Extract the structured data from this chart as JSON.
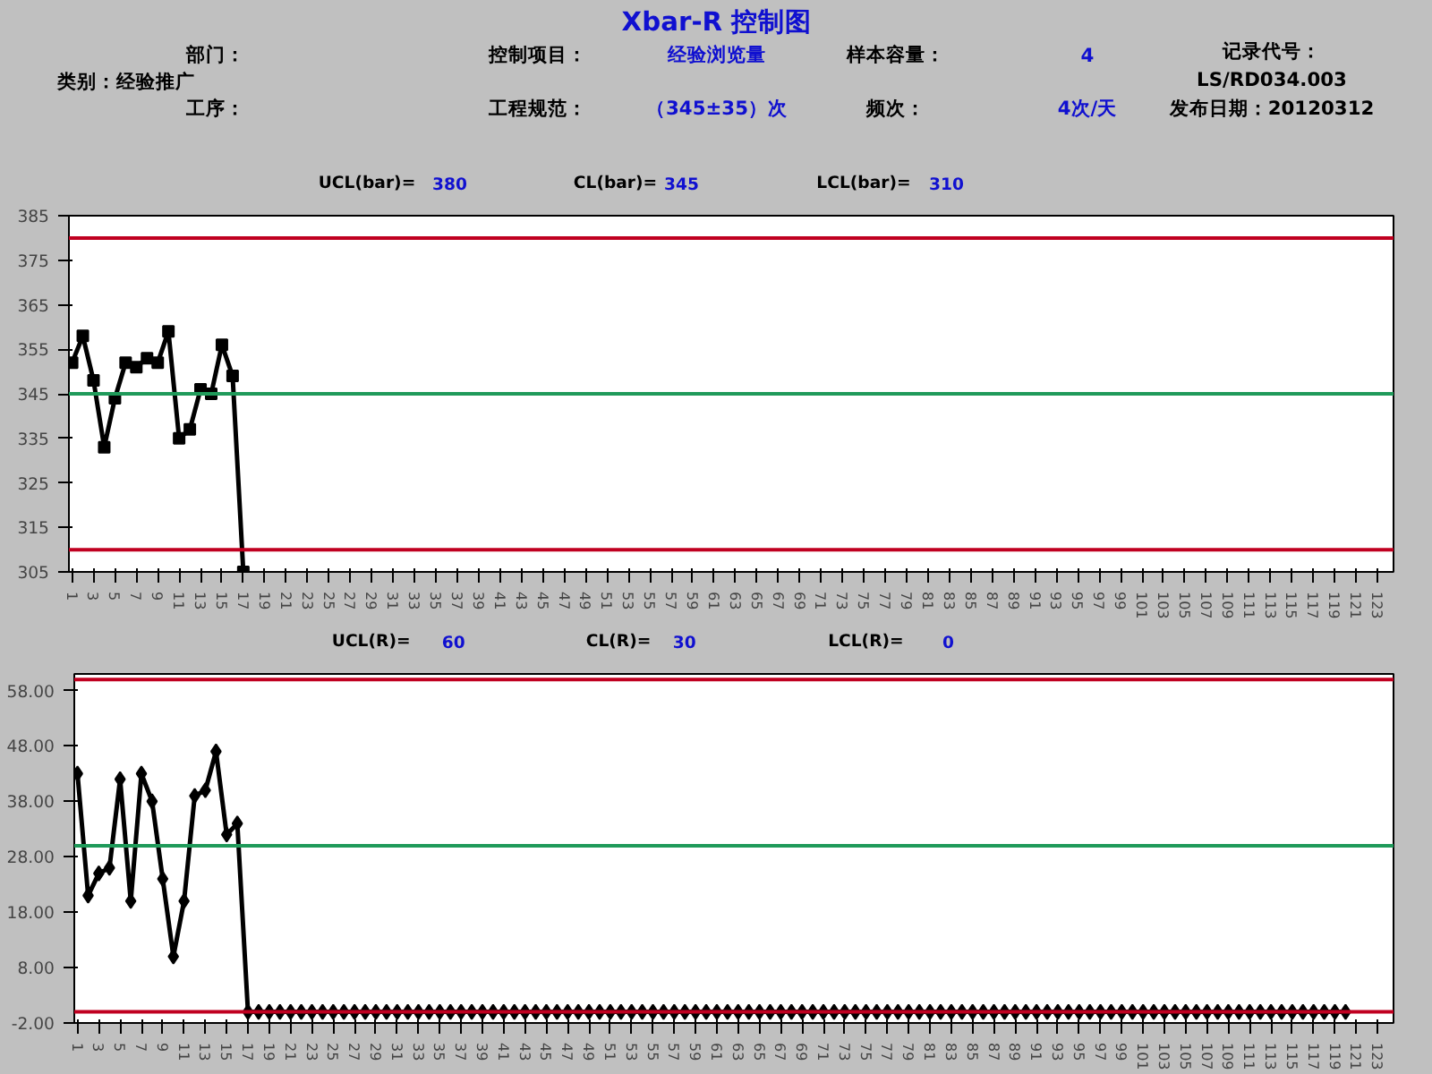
{
  "chart_data": [
    {
      "type": "other",
      "title": "Xbar-R 控制图",
      "annotations": [
        "类别：经验推广",
        "部门：",
        "控制项目：",
        "经验浏览量",
        "样本容量：",
        "4",
        "工序：",
        "工程规范：",
        "（345±35）次",
        "频次：",
        "4次/天",
        "记录代号：",
        "LS/RD034.003",
        "发布日期：20120312"
      ]
    },
    {
      "type": "line",
      "color": "#000000",
      "marker": "square",
      "line_style": "solid",
      "grid": false,
      "categories": [
        "1",
        null,
        "3",
        null,
        "5",
        null,
        "7",
        null,
        "9",
        null,
        "11",
        null,
        "13",
        null,
        "15",
        null,
        "17",
        null,
        "19",
        null,
        "21",
        null,
        "23",
        null,
        "25",
        null,
        "27",
        null,
        "29",
        null,
        "31",
        null,
        "33",
        null,
        "35",
        null,
        "37",
        null,
        "39",
        null,
        "41",
        null,
        "43",
        null,
        "45",
        null,
        "47",
        null,
        "49",
        null,
        "51",
        null,
        "53",
        null,
        "55",
        null,
        "57",
        null,
        "59",
        null,
        "61",
        null,
        "63",
        null,
        "65",
        null,
        "67",
        null,
        "69",
        null,
        "71",
        null,
        "73",
        null,
        "75",
        null,
        "77",
        null,
        "79",
        null,
        "81",
        null,
        "83",
        null,
        "85",
        null,
        "87",
        null,
        "89",
        null,
        "91",
        null,
        "93",
        null,
        "95",
        null,
        "97",
        null,
        "99",
        null,
        "101",
        null,
        "103",
        null,
        "105",
        null,
        "107",
        null,
        "109",
        null,
        "111",
        null,
        "113",
        null,
        "115",
        null,
        "117",
        null,
        "119",
        null,
        "121",
        null,
        "123",
        null
      ],
      "values": [
        352,
        358,
        348,
        333,
        344,
        352,
        351,
        353,
        352,
        359,
        335,
        337,
        346,
        345,
        356,
        349,
        305,
        null,
        null,
        null,
        null,
        null,
        null,
        null,
        null,
        null,
        null,
        null,
        null,
        null,
        null,
        null,
        null,
        null,
        null,
        null,
        null,
        null,
        null,
        null,
        null,
        null,
        null,
        null,
        null,
        null,
        null,
        null,
        null,
        null,
        null,
        null,
        null,
        null,
        null,
        null,
        null,
        null,
        null,
        null,
        null,
        null,
        null,
        null,
        null,
        null,
        null,
        null,
        null,
        null,
        null,
        null,
        null,
        null,
        null,
        null,
        null,
        null,
        null,
        null,
        null,
        null,
        null,
        null,
        null,
        null,
        null,
        null,
        null,
        null,
        null,
        null,
        null,
        null,
        null,
        null,
        null,
        null,
        null,
        null,
        null,
        null,
        null,
        null,
        null,
        null,
        null,
        null,
        null,
        null,
        null,
        null,
        null,
        null,
        null,
        null,
        null,
        null,
        null,
        null,
        null,
        null,
        null,
        null
      ],
      "ylim": [
        305,
        385
      ],
      "yticks": [
        305,
        315,
        325,
        335,
        345,
        355,
        365,
        375,
        385
      ],
      "ref_lines": [
        {
          "axis": "y",
          "value": 380,
          "color": "#c00020"
        },
        {
          "axis": "y",
          "value": 345,
          "color": "#1f9a5a"
        },
        {
          "axis": "y",
          "value": 310,
          "color": "#c00020"
        }
      ],
      "annotations": [
        "UCL(bar)=",
        "380",
        "CL(bar)=",
        "345",
        "LCL(bar)=",
        "310"
      ]
    },
    {
      "type": "line",
      "color": "#000000",
      "marker": "diamond",
      "line_style": "solid",
      "grid": false,
      "categories": [
        "1",
        null,
        "3",
        null,
        "5",
        null,
        "7",
        null,
        "9",
        null,
        "11",
        null,
        "13",
        null,
        "15",
        null,
        "17",
        null,
        "19",
        null,
        "21",
        null,
        "23",
        null,
        "25",
        null,
        "27",
        null,
        "29",
        null,
        "31",
        null,
        "33",
        null,
        "35",
        null,
        "37",
        null,
        "39",
        null,
        "41",
        null,
        "43",
        null,
        "45",
        null,
        "47",
        null,
        "49",
        null,
        "51",
        null,
        "53",
        null,
        "55",
        null,
        "57",
        null,
        "59",
        null,
        "61",
        null,
        "63",
        null,
        "65",
        null,
        "67",
        null,
        "69",
        null,
        "71",
        null,
        "73",
        null,
        "75",
        null,
        "77",
        null,
        "79",
        null,
        "81",
        null,
        "83",
        null,
        "85",
        null,
        "87",
        null,
        "89",
        null,
        "91",
        null,
        "93",
        null,
        "95",
        null,
        "97",
        null,
        "99",
        null,
        "101",
        null,
        "103",
        null,
        "105",
        null,
        "107",
        null,
        "109",
        null,
        "111",
        null,
        "113",
        null,
        "115",
        null,
        "117",
        null,
        "119",
        null,
        "121",
        null,
        "123",
        null
      ],
      "values": [
        43,
        21,
        25,
        26,
        42,
        20,
        43,
        38,
        24,
        10,
        20,
        39,
        40,
        47,
        32,
        34,
        0,
        0,
        0,
        0,
        0,
        0,
        0,
        0,
        0,
        0,
        0,
        0,
        0,
        0,
        0,
        0,
        0,
        0,
        0,
        0,
        0,
        0,
        0,
        0,
        0,
        0,
        0,
        0,
        0,
        0,
        0,
        0,
        0,
        0,
        0,
        0,
        0,
        0,
        0,
        0,
        0,
        0,
        0,
        0,
        0,
        0,
        0,
        0,
        0,
        0,
        0,
        0,
        0,
        0,
        0,
        0,
        0,
        0,
        0,
        0,
        0,
        0,
        0,
        0,
        0,
        0,
        0,
        0,
        0,
        0,
        0,
        0,
        0,
        0,
        0,
        0,
        0,
        0,
        0,
        0,
        0,
        0,
        0,
        0,
        0,
        0,
        0,
        0,
        0,
        0,
        0,
        0,
        0,
        0,
        0,
        0,
        0,
        0,
        0,
        0,
        0,
        0,
        0,
        0,
        null,
        null,
        null,
        null
      ],
      "ylim": [
        -2,
        61
      ],
      "yticks": [
        {
          "value": -2,
          "label": "-2.00"
        },
        {
          "value": 8,
          "label": "8.00"
        },
        {
          "value": 18,
          "label": "18.00"
        },
        {
          "value": 28,
          "label": "28.00"
        },
        {
          "value": 38,
          "label": "38.00"
        },
        {
          "value": 48,
          "label": "48.00"
        },
        {
          "value": 58,
          "label": "58.00"
        }
      ],
      "ref_lines": [
        {
          "axis": "y",
          "value": 60,
          "color": "#c00020"
        },
        {
          "axis": "y",
          "value": 30,
          "color": "#1f9a5a"
        },
        {
          "axis": "y",
          "value": 0,
          "color": "#c00020"
        }
      ],
      "annotations": [
        "UCL(R)=",
        "60",
        "CL(R)=",
        "30",
        "LCL(R)=",
        "0"
      ]
    }
  ]
}
